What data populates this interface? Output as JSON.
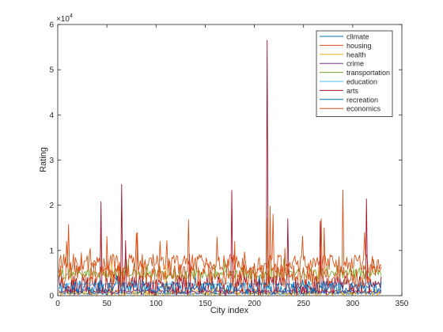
{
  "chart_data": {
    "type": "line",
    "title": "",
    "xlabel": "City index",
    "ylabel": "Rating",
    "exponent_label": "×10",
    "exponent_power": "4",
    "xlim": [
      0,
      350
    ],
    "ylim": [
      0,
      60000
    ],
    "xticks": [
      0,
      50,
      100,
      150,
      200,
      250,
      300,
      350
    ],
    "yticks": [
      0,
      10000,
      20000,
      30000,
      40000,
      50000,
      60000
    ],
    "xtick_labels": [
      "0",
      "50",
      "100",
      "150",
      "200",
      "250",
      "300",
      "350"
    ],
    "ytick_labels": [
      "0",
      "1",
      "2",
      "3",
      "4",
      "5",
      "6"
    ],
    "grid": false,
    "legend_position": "top-right",
    "n_points": 329,
    "series": [
      {
        "name": "climate",
        "color": "#0072BD",
        "base": 520,
        "noise": 250,
        "peaks": [
          [
            20,
            1000
          ],
          [
            100,
            900
          ],
          [
            200,
            950
          ],
          [
            300,
            900
          ]
        ]
      },
      {
        "name": "housing",
        "color": "#D95319",
        "base": 7000,
        "noise": 2200,
        "peaks": [
          [
            11,
            15800
          ],
          [
            44,
            13500
          ],
          [
            80,
            13800
          ],
          [
            111,
            12200
          ],
          [
            162,
            13000
          ],
          [
            219,
            18000
          ],
          [
            249,
            13200
          ],
          [
            290,
            23400
          ],
          [
            312,
            14000
          ]
        ]
      },
      {
        "name": "health",
        "color": "#EDB120",
        "base": 700,
        "noise": 800,
        "peaks": [
          [
            55,
            7500
          ],
          [
            110,
            6800
          ],
          [
            213,
            17000
          ],
          [
            265,
            6500
          ]
        ]
      },
      {
        "name": "crime",
        "color": "#7E2F8E",
        "base": 900,
        "noise": 350,
        "peaks": [
          [
            30,
            2000
          ],
          [
            150,
            2100
          ],
          [
            250,
            2000
          ]
        ]
      },
      {
        "name": "transportation",
        "color": "#77AC30",
        "base": 4800,
        "noise": 1200,
        "peaks": [
          [
            70,
            8000
          ],
          [
            170,
            7800
          ],
          [
            230,
            8200
          ]
        ]
      },
      {
        "name": "education",
        "color": "#4DBEEE",
        "base": 2600,
        "noise": 300,
        "peaks": [
          [
            90,
            3700
          ],
          [
            215,
            3600
          ]
        ]
      },
      {
        "name": "arts",
        "color": "#A2142F",
        "base": 2200,
        "noise": 2200,
        "peaks": [
          [
            44,
            20800
          ],
          [
            65,
            24600
          ],
          [
            69,
            12200
          ],
          [
            134,
            9200
          ],
          [
            177,
            23300
          ],
          [
            213,
            56500
          ],
          [
            234,
            17000
          ],
          [
            267,
            16500
          ],
          [
            314,
            21400
          ]
        ]
      },
      {
        "name": "recreation",
        "color": "#0072BD",
        "base": 1800,
        "noise": 1400,
        "peaks": [
          [
            60,
            4500
          ],
          [
            140,
            4200
          ],
          [
            205,
            4300
          ],
          [
            270,
            4400
          ]
        ]
      },
      {
        "name": "economics",
        "color": "#D95319",
        "base": 4500,
        "noise": 2600,
        "peaks": [
          [
            9,
            12000
          ],
          [
            50,
            13100
          ],
          [
            81,
            14000
          ],
          [
            133,
            16800
          ],
          [
            180,
            12000
          ],
          [
            216,
            19800
          ],
          [
            268,
            17000
          ],
          [
            271,
            15000
          ],
          [
            321,
            8000
          ]
        ]
      }
    ]
  }
}
